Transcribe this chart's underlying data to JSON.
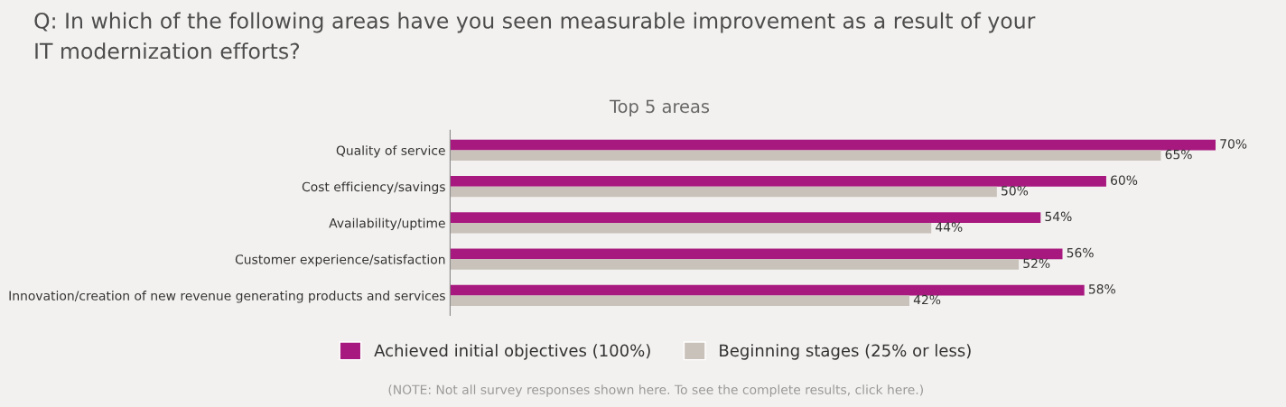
{
  "chart_data": {
    "type": "bar",
    "orientation": "horizontal",
    "title": "Q: In which of the following areas have you seen measurable improvement as a result of your\nIT modernization efforts?",
    "subtitle": "Top 5 areas",
    "categories": [
      "Quality of service",
      "Cost efficiency/savings",
      "Availability/uptime",
      "Customer experience/satisfaction",
      "Innovation/creation of new revenue generating products and services"
    ],
    "series": [
      {
        "name": "Achieved initial objectives (100%)",
        "color": "#a8197f",
        "values": [
          70,
          60,
          54,
          56,
          58
        ],
        "value_labels": [
          "70%",
          "60%",
          "54%",
          "56%",
          "58%"
        ]
      },
      {
        "name": "Beginning stages (25% or less)",
        "color": "#c9c2bb",
        "values": [
          65,
          50,
          44,
          52,
          42
        ],
        "value_labels": [
          "65%",
          "50%",
          "44%",
          "52%",
          "42%"
        ]
      }
    ],
    "tick_labels": "y",
    "grid": false,
    "legend": "bottom",
    "annotations": [
      "(NOTE: Not all survey responses shown here. To see the complete results, click here.)"
    ]
  }
}
